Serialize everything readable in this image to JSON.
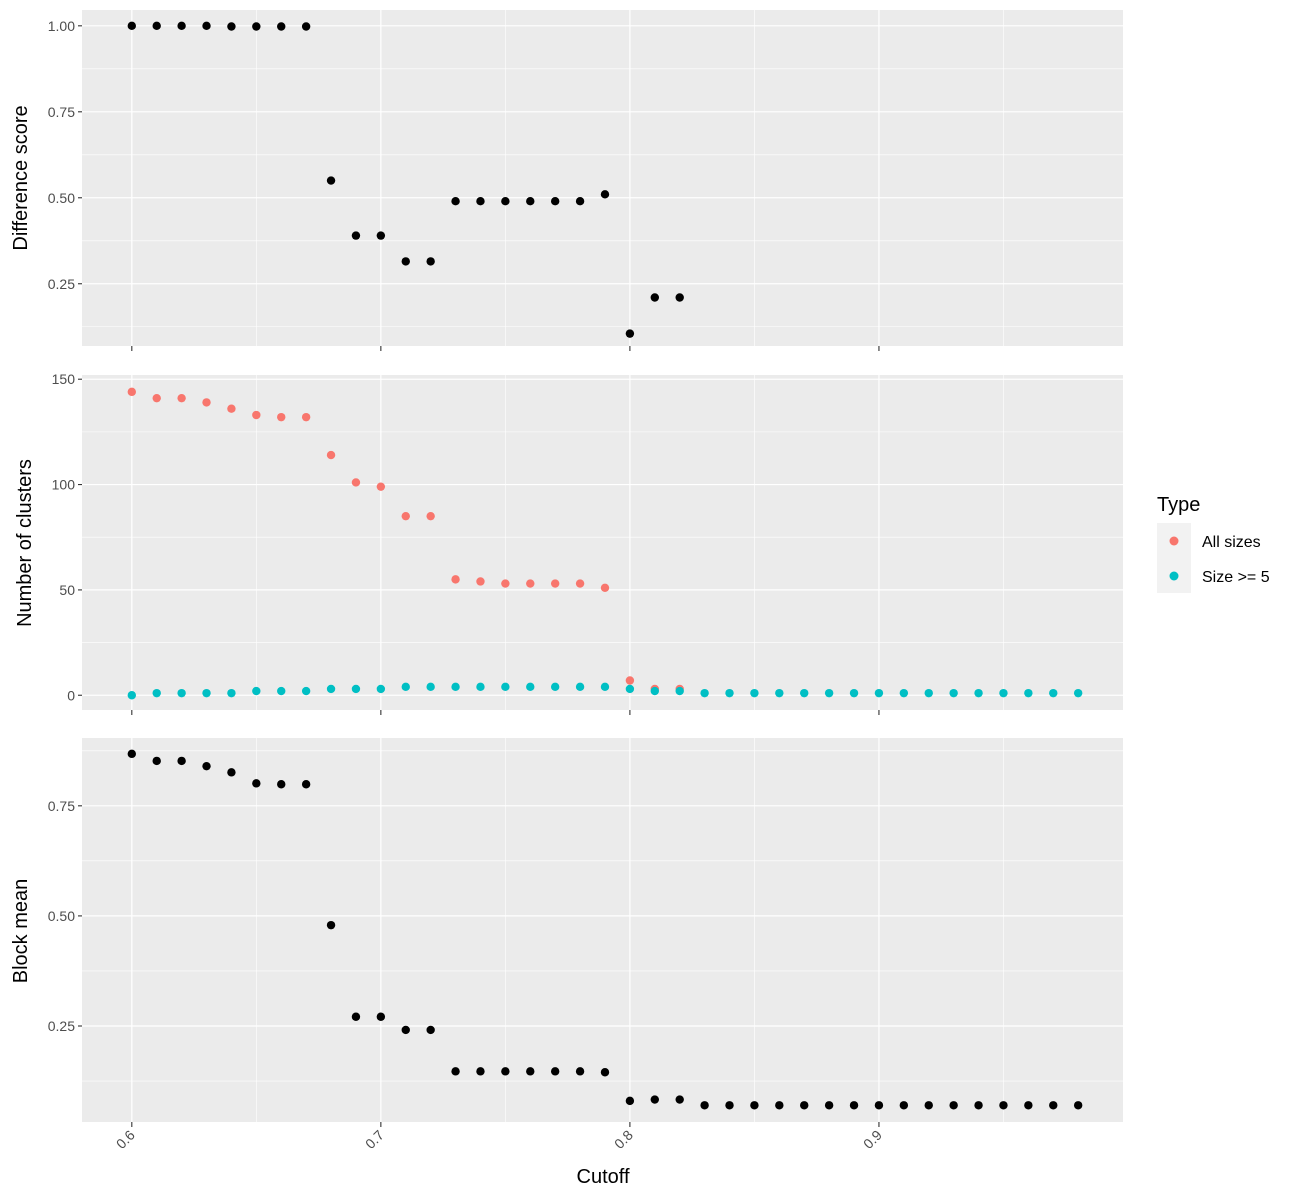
{
  "chart_data": [
    {
      "type": "scatter",
      "ylabel": "Difference score",
      "xlim": [
        0.58,
        0.998
      ],
      "ylim": [
        0.069,
        1.046
      ],
      "yticks": [
        0.25,
        0.5,
        0.75,
        1.0
      ],
      "ytick_labels": [
        "0.25",
        "0.50",
        "0.75",
        "1.00"
      ],
      "color": "#000000",
      "x": [
        0.6,
        0.61,
        0.62,
        0.63,
        0.64,
        0.65,
        0.66,
        0.67,
        0.68,
        0.69,
        0.7,
        0.71,
        0.72,
        0.73,
        0.74,
        0.75,
        0.76,
        0.77,
        0.78,
        0.79,
        0.8,
        0.81,
        0.82
      ],
      "y": [
        1.0,
        1.0,
        1.0,
        1.0,
        0.998,
        0.998,
        0.998,
        0.998,
        0.55,
        0.39,
        0.39,
        0.315,
        0.315,
        0.49,
        0.49,
        0.49,
        0.49,
        0.49,
        0.49,
        0.51,
        0.105,
        0.21,
        0.21
      ]
    },
    {
      "type": "scatter",
      "ylabel": "Number of clusters",
      "xlim": [
        0.58,
        0.998
      ],
      "ylim": [
        -7,
        152
      ],
      "yticks": [
        0,
        50,
        100,
        150
      ],
      "ytick_labels": [
        "0",
        "50",
        "100",
        "150"
      ],
      "series": [
        {
          "name": "All sizes",
          "color": "#F8766D",
          "x": [
            0.6,
            0.61,
            0.62,
            0.63,
            0.64,
            0.65,
            0.66,
            0.67,
            0.68,
            0.69,
            0.7,
            0.71,
            0.72,
            0.73,
            0.74,
            0.75,
            0.76,
            0.77,
            0.78,
            0.79,
            0.8,
            0.81,
            0.82
          ],
          "y": [
            144,
            141,
            141,
            139,
            136,
            133,
            132,
            132,
            114,
            101,
            99,
            85,
            85,
            55,
            54,
            53,
            53,
            53,
            53,
            51,
            7,
            3,
            3
          ]
        },
        {
          "name": "Size >= 5",
          "color": "#00BFC4",
          "x": [
            0.6,
            0.61,
            0.62,
            0.63,
            0.64,
            0.65,
            0.66,
            0.67,
            0.68,
            0.69,
            0.7,
            0.71,
            0.72,
            0.73,
            0.74,
            0.75,
            0.76,
            0.77,
            0.78,
            0.79,
            0.8,
            0.81,
            0.82,
            0.83,
            0.84,
            0.85,
            0.86,
            0.87,
            0.88,
            0.89,
            0.9,
            0.91,
            0.92,
            0.93,
            0.94,
            0.95,
            0.96,
            0.97,
            0.98
          ],
          "y": [
            0,
            1,
            1,
            1,
            1,
            2,
            2,
            2,
            3,
            3,
            3,
            4,
            4,
            4,
            4,
            4,
            4,
            4,
            4,
            4,
            3,
            2,
            2,
            1,
            1,
            1,
            1,
            1,
            1,
            1,
            1,
            1,
            1,
            1,
            1,
            1,
            1,
            1,
            1
          ]
        }
      ]
    },
    {
      "type": "scatter",
      "ylabel": "Block mean",
      "xlabel": "Cutoff",
      "xlim": [
        0.58,
        0.998
      ],
      "ylim": [
        0.032,
        0.904
      ],
      "yticks": [
        0.25,
        0.5,
        0.75
      ],
      "ytick_labels": [
        "0.25",
        "0.50",
        "0.75"
      ],
      "xticks": [
        0.6,
        0.7,
        0.8,
        0.9
      ],
      "xtick_labels": [
        "0.6",
        "0.7",
        "0.8",
        "0.9"
      ],
      "color": "#000000",
      "x": [
        0.6,
        0.61,
        0.62,
        0.63,
        0.64,
        0.65,
        0.66,
        0.67,
        0.68,
        0.69,
        0.7,
        0.71,
        0.72,
        0.73,
        0.74,
        0.75,
        0.76,
        0.77,
        0.78,
        0.79,
        0.8,
        0.81,
        0.82,
        0.83,
        0.84,
        0.85,
        0.86,
        0.87,
        0.88,
        0.89,
        0.9,
        0.91,
        0.92,
        0.93,
        0.94,
        0.95,
        0.96,
        0.97,
        0.98
      ],
      "y": [
        0.868,
        0.852,
        0.852,
        0.84,
        0.826,
        0.801,
        0.799,
        0.799,
        0.479,
        0.271,
        0.271,
        0.241,
        0.241,
        0.147,
        0.147,
        0.147,
        0.147,
        0.147,
        0.147,
        0.145,
        0.08,
        0.083,
        0.083,
        0.07,
        0.07,
        0.07,
        0.07,
        0.07,
        0.07,
        0.07,
        0.07,
        0.07,
        0.07,
        0.07,
        0.07,
        0.07,
        0.07,
        0.07,
        0.07
      ]
    }
  ],
  "legend": {
    "title": "Type",
    "position": "right",
    "entries": [
      {
        "label": "All sizes",
        "color": "#F8766D"
      },
      {
        "label": "Size >= 5",
        "color": "#00BFC4"
      }
    ]
  },
  "panel_background": "#EBEBEB",
  "grid_color": "#FFFFFF"
}
